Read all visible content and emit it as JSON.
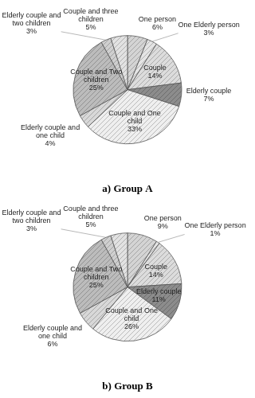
{
  "chart_data": [
    {
      "type": "pie",
      "title": "a) Group A",
      "categories": [
        "One person",
        "One Elderly person",
        "Couple",
        "Elderly couple",
        "Couple and One child",
        "Elderly couple and one child",
        "Couple and Two children",
        "Elderly couple and two children",
        "Couple and three children"
      ],
      "values": [
        6,
        3,
        14,
        7,
        33,
        4,
        25,
        3,
        5
      ],
      "value_labels": [
        "6%",
        "3%",
        "14%",
        "7%",
        "33%",
        "4%",
        "25%",
        "3%",
        "5%"
      ],
      "colors": [
        "#d4d4d4",
        "#e4e4e4",
        "#dcdcdc",
        "#8c8c8c",
        "#efefef",
        "#d8d8d8",
        "#bcbcbc",
        "#cfcfcf",
        "#e2e2e2"
      ],
      "data_labels": true
    },
    {
      "type": "pie",
      "title": "b) Group B",
      "categories": [
        "One person",
        "One Elderly person",
        "Couple",
        "Elderly couple",
        "Couple and One child",
        "Elderly couple and one child",
        "Couple and Two children",
        "Elderly couple and two children",
        "Couple and three children"
      ],
      "values": [
        9,
        1,
        14,
        11,
        26,
        6,
        25,
        3,
        5
      ],
      "value_labels": [
        "9%",
        "1%",
        "14%",
        "11%",
        "26%",
        "6%",
        "25%",
        "3%",
        "5%"
      ],
      "colors": [
        "#d4d4d4",
        "#e4e4e4",
        "#dcdcdc",
        "#8c8c8c",
        "#efefef",
        "#d8d8d8",
        "#bcbcbc",
        "#cfcfcf",
        "#e2e2e2"
      ],
      "data_labels": true
    }
  ]
}
